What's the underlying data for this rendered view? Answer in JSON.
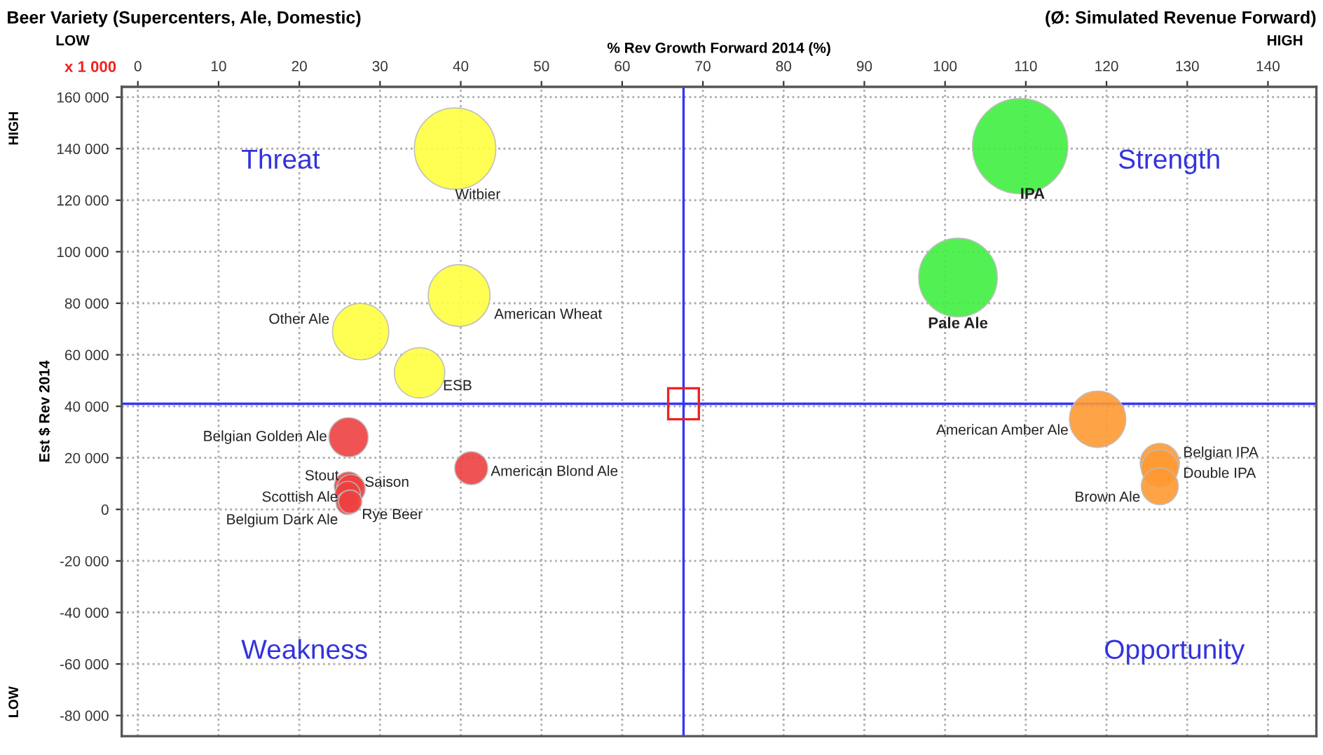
{
  "chart_data": {
    "type": "bubble",
    "title": "Beer Variety (Supercenters, Ale, Domestic)",
    "xlabel": "% Rev Growth Forward 2014 (%)",
    "ylabel": "Est $ Rev 2014",
    "xlim": [
      -2,
      146
    ],
    "xticks": [
      0,
      10,
      20,
      30,
      40,
      50,
      60,
      70,
      80,
      90,
      100,
      110,
      120,
      130,
      140
    ],
    "ylim": [
      -88000,
      164000
    ],
    "yticks": [
      {
        "value": 160000,
        "label": "160 000"
      },
      {
        "value": 140000,
        "label": "140 000"
      },
      {
        "value": 120000,
        "label": "120 000"
      },
      {
        "value": 100000,
        "label": "100 000"
      },
      {
        "value": 80000,
        "label": "80 000"
      },
      {
        "value": 60000,
        "label": "60 000"
      },
      {
        "value": 40000,
        "label": "40 000"
      },
      {
        "value": 20000,
        "label": "20 000"
      },
      0,
      {
        "value": -20000,
        "label": "-20 000"
      },
      {
        "value": -40000,
        "label": "-40 000"
      },
      {
        "value": -60000,
        "label": "-60 000"
      },
      {
        "value": -80000,
        "label": "-80 000"
      }
    ],
    "grid": true,
    "series": [
      {
        "color": "#ffff40",
        "x": [
          39.3,
          39.8,
          27.6,
          34.9
        ],
        "values": [
          140000,
          83000,
          69000,
          53000
        ],
        "sizes": [
          0.73,
          0.42,
          0.35,
          0.28
        ]
      },
      {
        "color": "#40ee40",
        "x": [
          109.3,
          101.6
        ],
        "values": [
          141000,
          90000
        ],
        "sizes": [
          1,
          0.68
        ]
      },
      {
        "color": "#ee4040",
        "x": [
          26.1,
          41.3,
          26.1,
          26.4,
          26.0,
          26.0,
          26.3
        ],
        "values": [
          28000,
          16000,
          9000,
          8000,
          6000,
          2500,
          3000
        ],
        "sizes": [
          0.17,
          0.12,
          0.09,
          0.09,
          0.07,
          0.06,
          0.06
        ]
      },
      {
        "color": "#ff9933",
        "x": [
          118.9,
          126.6,
          126.6,
          126.6
        ],
        "values": [
          35000,
          18000,
          16000,
          9000
        ],
        "sizes": [
          0.35,
          0.17,
          0.15,
          0.15
        ]
      }
    ],
    "ref_lines": [
      {
        "axis": "x",
        "value": 67.6,
        "color": "#3333ff"
      },
      {
        "axis": "y",
        "value": 41000,
        "color": "#3333ff"
      }
    ],
    "annotations": [
      "Threat",
      "Strength",
      "Weakness",
      "Opportunity",
      "x 1 000",
      "(Ø: Simulated Revenue Forward)",
      "LOW",
      "HIGH",
      "HIGH",
      "LOW",
      {
        "text": "Witbier",
        "x": 39.3,
        "y": 140000
      },
      {
        "text": "American Wheat",
        "x": 39.8,
        "y": 83000
      },
      {
        "text": "Other Ale",
        "x": 27.6,
        "y": 69000
      },
      {
        "text": "ESB",
        "x": 34.9,
        "y": 53000
      },
      {
        "text": "IPA",
        "x": 109.3,
        "y": 141000
      },
      {
        "text": "Pale Ale",
        "x": 101.6,
        "y": 90000
      },
      {
        "text": "Belgian Golden Ale",
        "x": 26.1,
        "y": 28000
      },
      {
        "text": "American Blond Ale",
        "x": 41.3,
        "y": 16000
      },
      {
        "text": "Stout",
        "x": 26.1,
        "y": 9000
      },
      {
        "text": "Saison",
        "x": 26.4,
        "y": 8000
      },
      {
        "text": "Scottish Ale",
        "x": 26.0,
        "y": 6000
      },
      {
        "text": "Belgium Dark Ale",
        "x": 26.0,
        "y": 2500
      },
      {
        "text": "Rye Beer",
        "x": 26.3,
        "y": 3000
      },
      {
        "text": "American Amber Ale",
        "x": 118.9,
        "y": 35000
      },
      {
        "text": "Belgian IPA",
        "x": 126.6,
        "y": 18000
      },
      {
        "text": "Double IPA",
        "x": 126.6,
        "y": 16000
      },
      {
        "text": "Brown Ale",
        "x": 126.6,
        "y": 9000
      }
    ]
  }
}
